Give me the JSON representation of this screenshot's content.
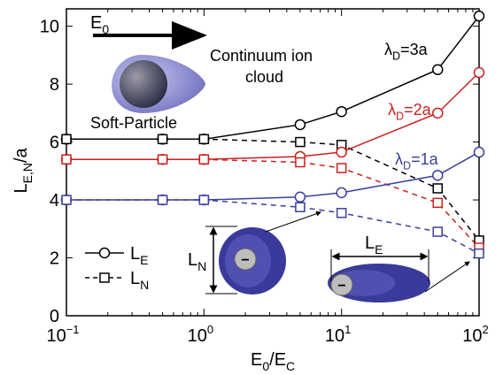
{
  "chart_data": {
    "type": "line",
    "log_x": true,
    "x": [
      0.1,
      0.5,
      1,
      5,
      10,
      50,
      100
    ],
    "xlim": [
      0.1,
      100
    ],
    "ylim": [
      0,
      10.6
    ],
    "xticks": [
      {
        "value": 0.1,
        "label": [
          "10",
          "−1"
        ]
      },
      {
        "value": 1,
        "label": [
          "10",
          "0"
        ]
      },
      {
        "value": 10,
        "label": [
          "10",
          "1"
        ]
      },
      {
        "value": 100,
        "label": [
          "10",
          "2"
        ]
      }
    ],
    "yticks": [
      0,
      2,
      4,
      6,
      8,
      10
    ],
    "x_label": [
      {
        "text": "E"
      },
      {
        "text": "0",
        "sub": true
      },
      {
        "text": "/E"
      },
      {
        "text": "C",
        "sub": true
      }
    ],
    "y_label": [
      {
        "text": "L"
      },
      {
        "text": "E,N",
        "sub": true
      },
      {
        "text": "/a"
      }
    ],
    "legend": [
      {
        "name": [
          {
            "text": "L"
          },
          {
            "text": "E",
            "sub": true
          }
        ],
        "marker": "circle",
        "dashed": false
      },
      {
        "name": [
          {
            "text": "L"
          },
          {
            "text": "N",
            "sub": true
          }
        ],
        "marker": "square",
        "dashed": true
      }
    ],
    "series": [
      {
        "label": [
          {
            "text": "λ"
          },
          {
            "text": "D",
            "sub": true
          },
          {
            "text": "=3a"
          }
        ],
        "color": "#000000",
        "L_E": [
          6.1,
          6.1,
          6.1,
          6.6,
          7.05,
          8.5,
          10.35
        ],
        "L_N": [
          6.1,
          6.1,
          6.1,
          6.0,
          5.9,
          4.4,
          2.6
        ]
      },
      {
        "label": [
          {
            "text": "λ"
          },
          {
            "text": "D",
            "sub": true
          },
          {
            "text": "=2a"
          }
        ],
        "color": "#cc1f1f",
        "L_E": [
          5.4,
          5.4,
          5.4,
          5.5,
          5.65,
          7.0,
          8.4
        ],
        "L_N": [
          5.4,
          5.4,
          5.4,
          5.3,
          5.1,
          3.9,
          2.35
        ]
      },
      {
        "label": [
          {
            "text": "λ"
          },
          {
            "text": "D",
            "sub": true
          },
          {
            "text": "=1a"
          }
        ],
        "color": "#3b3f9a",
        "L_E": [
          4.0,
          4.0,
          4.0,
          4.1,
          4.25,
          4.85,
          5.65
        ],
        "L_N": [
          4.0,
          4.0,
          4.0,
          3.75,
          3.55,
          2.9,
          2.15
        ]
      }
    ],
    "annotations": {
      "field": [
        {
          "text": "E"
        },
        {
          "text": "0",
          "sub": true
        }
      ],
      "cloud": [
        "Continuum ion",
        "cloud"
      ],
      "particle": "Soft-Particle",
      "length_n": [
        {
          "text": "L"
        },
        {
          "text": "N",
          "sub": true
        }
      ],
      "length_e": [
        {
          "text": "L"
        },
        {
          "text": "E",
          "sub": true
        }
      ],
      "charge": "−"
    }
  }
}
